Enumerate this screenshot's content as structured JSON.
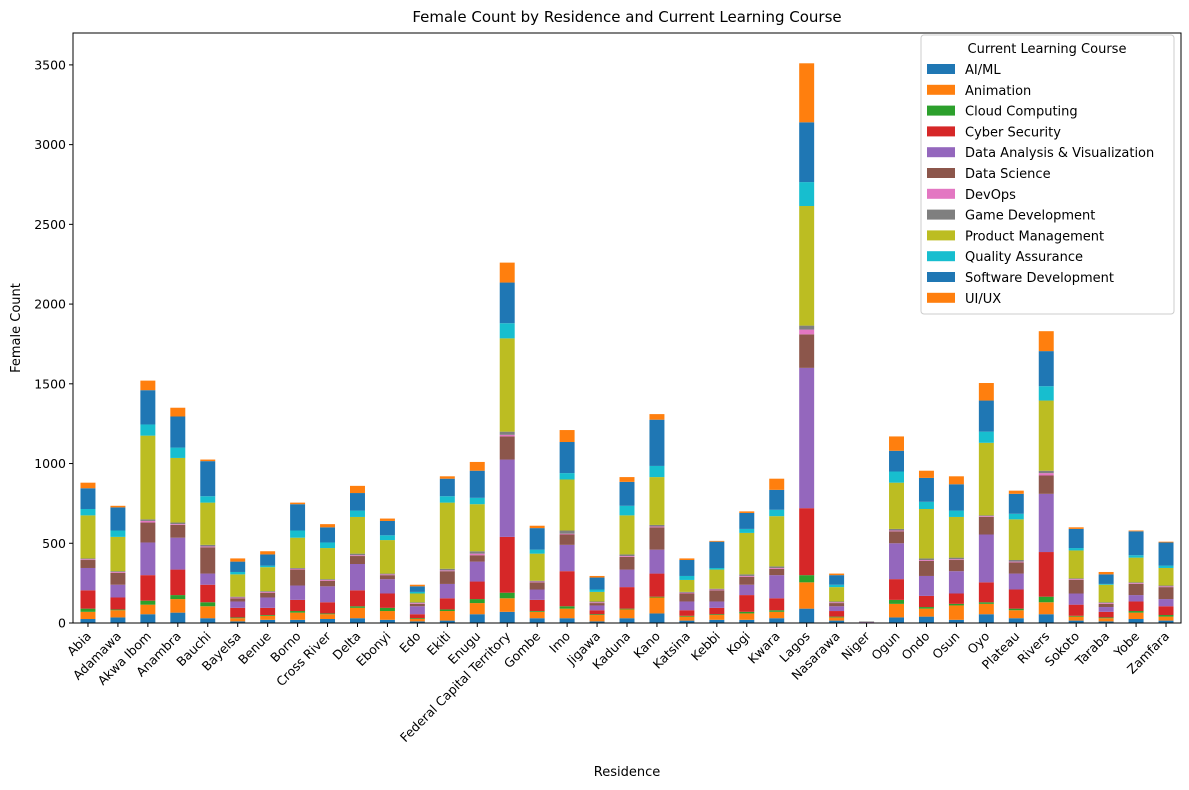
{
  "chart_data": {
    "type": "bar",
    "stacked": true,
    "title": "Female Count by Residence and Current Learning Course",
    "xlabel": "Residence",
    "ylabel": "Female Count",
    "ylim": [
      0,
      3700
    ],
    "yticks": [
      0,
      500,
      1000,
      1500,
      2000,
      2500,
      3000,
      3500
    ],
    "legend_title": "Current Learning Course",
    "legend_position": "top-right",
    "categories": [
      "Abia",
      "Adamawa",
      "Akwa Ibom",
      "Anambra",
      "Bauchi",
      "Bayelsa",
      "Benue",
      "Borno",
      "Cross River",
      "Delta",
      "Ebonyi",
      "Edo",
      "Ekiti",
      "Enugu",
      "Federal Capital Territory",
      "Gombe",
      "Imo",
      "Jigawa",
      "Kaduna",
      "Kano",
      "Katsina",
      "Kebbi",
      "Kogi",
      "Kwara",
      "Lagos",
      "Nasarawa",
      "Niger",
      "Ogun",
      "Ondo",
      "Osun",
      "Oyo",
      "Plateau",
      "Rivers",
      "Sokoto",
      "Taraba",
      "Yobe",
      "Zamfara"
    ],
    "series": [
      {
        "name": "AI/ML",
        "color": "#1f77b4",
        "values": [
          25,
          35,
          55,
          65,
          30,
          10,
          20,
          20,
          25,
          30,
          20,
          10,
          15,
          55,
          70,
          30,
          30,
          10,
          30,
          60,
          15,
          20,
          20,
          30,
          90,
          15,
          1,
          35,
          40,
          20,
          55,
          30,
          55,
          15,
          10,
          25,
          15
        ]
      },
      {
        "name": "Animation",
        "color": "#ff7f0e",
        "values": [
          45,
          45,
          60,
          85,
          75,
          20,
          25,
          45,
          30,
          65,
          55,
          15,
          60,
          70,
          85,
          40,
          60,
          40,
          55,
          100,
          25,
          30,
          40,
          40,
          165,
          20,
          1,
          85,
          50,
          90,
          65,
          50,
          75,
          25,
          20,
          40,
          25
        ]
      },
      {
        "name": "Cloud Computing",
        "color": "#2ca02c",
        "values": [
          20,
          5,
          25,
          25,
          25,
          5,
          5,
          10,
          5,
          10,
          20,
          5,
          10,
          25,
          35,
          5,
          15,
          5,
          5,
          5,
          5,
          5,
          10,
          10,
          45,
          5,
          0,
          25,
          10,
          10,
          10,
          10,
          35,
          5,
          5,
          10,
          10
        ]
      },
      {
        "name": "Cyber Security",
        "color": "#d62728",
        "values": [
          115,
          75,
          160,
          160,
          110,
          60,
          45,
          70,
          70,
          100,
          90,
          25,
          70,
          110,
          350,
          70,
          220,
          25,
          135,
          145,
          35,
          40,
          105,
          75,
          420,
          35,
          2,
          130,
          70,
          65,
          125,
          120,
          280,
          70,
          35,
          60,
          55
        ]
      },
      {
        "name": "Data Analysis & Visualization",
        "color": "#9467bd",
        "values": [
          140,
          80,
          205,
          200,
          70,
          40,
          65,
          90,
          100,
          165,
          90,
          50,
          90,
          125,
          485,
          65,
          165,
          30,
          110,
          150,
          55,
          40,
          65,
          145,
          880,
          30,
          2,
          225,
          125,
          140,
          300,
          100,
          365,
          70,
          30,
          40,
          45
        ]
      },
      {
        "name": "Data Science",
        "color": "#8c564b",
        "values": [
          50,
          75,
          125,
          80,
          165,
          20,
          30,
          100,
          35,
          50,
          25,
          15,
          80,
          40,
          145,
          45,
          65,
          15,
          80,
          140,
          50,
          70,
          50,
          40,
          210,
          20,
          1,
          75,
          95,
          70,
          110,
          70,
          115,
          85,
          20,
          70,
          75
        ]
      },
      {
        "name": "DevOps",
        "color": "#e377c2",
        "values": [
          5,
          5,
          10,
          5,
          5,
          5,
          5,
          5,
          5,
          5,
          5,
          5,
          5,
          10,
          10,
          5,
          5,
          5,
          5,
          5,
          5,
          5,
          5,
          5,
          30,
          5,
          0,
          5,
          5,
          5,
          5,
          5,
          15,
          5,
          5,
          5,
          5
        ]
      },
      {
        "name": "Game Development",
        "color": "#7f7f7f",
        "values": [
          5,
          5,
          10,
          10,
          10,
          5,
          5,
          5,
          5,
          10,
          5,
          5,
          10,
          15,
          20,
          5,
          20,
          5,
          10,
          10,
          5,
          5,
          10,
          10,
          25,
          5,
          0,
          10,
          10,
          10,
          5,
          10,
          15,
          5,
          5,
          5,
          5
        ]
      },
      {
        "name": "Product Management",
        "color": "#bcbd22",
        "values": [
          270,
          215,
          525,
          405,
          265,
          140,
          150,
          190,
          195,
          230,
          210,
          55,
          415,
          295,
          585,
          170,
          320,
          60,
          245,
          300,
          75,
          120,
          260,
          315,
          750,
          90,
          0,
          290,
          310,
          255,
          455,
          255,
          440,
          175,
          110,
          155,
          110
        ]
      },
      {
        "name": "Quality Assurance",
        "color": "#17becf",
        "values": [
          40,
          40,
          70,
          65,
          40,
          15,
          10,
          45,
          35,
          40,
          30,
          10,
          40,
          40,
          95,
          25,
          40,
          15,
          60,
          70,
          25,
          10,
          25,
          40,
          150,
          15,
          0,
          70,
          45,
          40,
          70,
          35,
          90,
          15,
          5,
          15,
          15
        ]
      },
      {
        "name": "Software Development",
        "color": "#1f77b4",
        "values": [
          130,
          145,
          215,
          195,
          220,
          65,
          70,
          165,
          95,
          110,
          90,
          35,
          110,
          170,
          255,
          135,
          195,
          75,
          150,
          290,
          100,
          165,
          100,
          125,
          375,
          60,
          2,
          130,
          150,
          165,
          195,
          125,
          220,
          120,
          60,
          150,
          145
        ]
      },
      {
        "name": "UI/UX",
        "color": "#ff7f0e",
        "values": [
          35,
          10,
          60,
          55,
          10,
          20,
          20,
          10,
          20,
          45,
          15,
          10,
          15,
          55,
          125,
          15,
          75,
          10,
          30,
          35,
          10,
          5,
          10,
          70,
          370,
          10,
          1,
          90,
          45,
          50,
          110,
          20,
          125,
          10,
          15,
          5,
          5
        ]
      }
    ]
  }
}
